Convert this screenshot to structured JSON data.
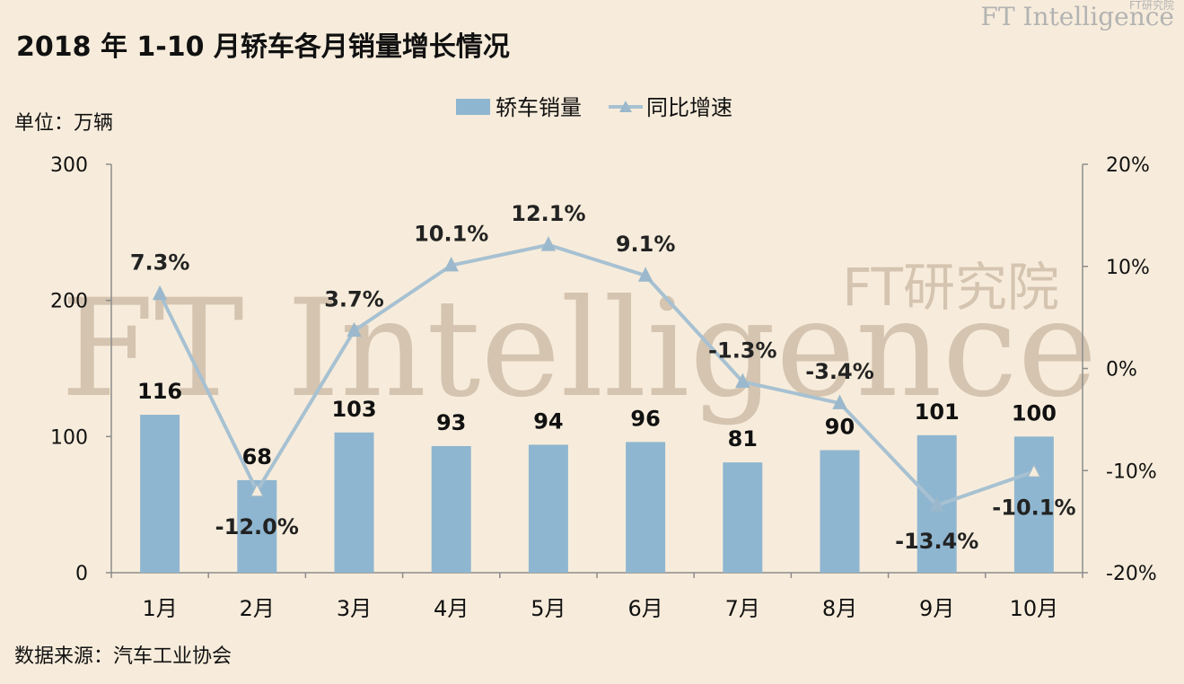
{
  "header": {
    "title": "2018 年 1-10 月轿车各月销量增长情况",
    "brand": "FT Intelligence",
    "brand_cn": "FT研究院"
  },
  "watermark": {
    "main": "FT Intelligence",
    "sub": "FT研究院"
  },
  "unit_label": "单位：万辆",
  "source_label": "数据来源：汽车工业协会",
  "colors": {
    "bar": "#8fb6d0",
    "line": "#a7c1d2",
    "marker": "#9bb8cc",
    "background": "#f7ecdb"
  },
  "chart_data": {
    "type": "bar",
    "categories": [
      "1月",
      "2月",
      "3月",
      "4月",
      "5月",
      "6月",
      "7月",
      "8月",
      "9月",
      "10月"
    ],
    "series": [
      {
        "name": "轿车销量",
        "type": "bar",
        "axis": "left",
        "values": [
          116,
          68,
          103,
          93,
          94,
          96,
          81,
          90,
          101,
          100
        ]
      },
      {
        "name": "同比增速",
        "type": "line",
        "axis": "right",
        "values": [
          7.3,
          -12.0,
          3.7,
          10.1,
          12.1,
          9.1,
          -1.3,
          -3.4,
          -13.4,
          -10.1
        ],
        "labels": [
          "7.3%",
          "-12.0%",
          "3.7%",
          "10.1%",
          "12.1%",
          "9.1%",
          "-1.3%",
          "-3.4%",
          "-13.4%",
          "-10.1%"
        ]
      }
    ],
    "y_left": {
      "ylim": [
        0,
        300
      ],
      "ticks": [
        "0",
        "100",
        "200",
        "300"
      ]
    },
    "y_right": {
      "ylim": [
        -20,
        20
      ],
      "ticks": [
        "-20%",
        "-10%",
        "0%",
        "10%",
        "20%"
      ]
    },
    "legend": "top-center",
    "grid": false
  }
}
